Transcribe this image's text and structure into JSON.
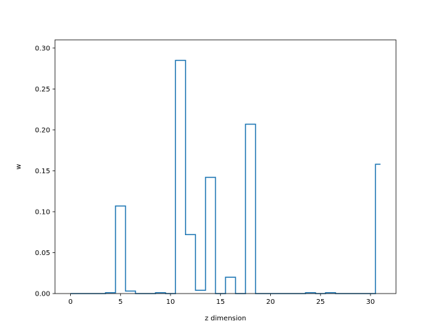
{
  "chart_data": {
    "type": "line",
    "drawstyle": "steps-mid",
    "xlabel": "z dimension",
    "ylabel": "w",
    "xlim": [
      -1.55,
      32.55
    ],
    "ylim": [
      0.0,
      0.31
    ],
    "xticks": [
      0,
      5,
      10,
      15,
      20,
      25,
      30
    ],
    "yticks": [
      0.0,
      0.05,
      0.1,
      0.15,
      0.2,
      0.25,
      0.3
    ],
    "ytick_labels": [
      "0.00",
      "0.05",
      "0.10",
      "0.15",
      "0.20",
      "0.25",
      "0.30"
    ],
    "grid": false,
    "series_color": "#1f77b4",
    "x": [
      0,
      1,
      2,
      3,
      4,
      5,
      6,
      7,
      8,
      9,
      10,
      11,
      12,
      13,
      14,
      15,
      16,
      17,
      18,
      19,
      20,
      21,
      22,
      23,
      24,
      25,
      26,
      27,
      28,
      29,
      30,
      31
    ],
    "values": [
      0.0,
      0.0,
      0.0,
      0.0,
      0.001,
      0.107,
      0.003,
      0.0,
      0.0,
      0.001,
      0.0,
      0.285,
      0.072,
      0.004,
      0.142,
      0.0,
      0.02,
      0.0,
      0.207,
      0.0,
      0.0,
      0.0,
      0.0,
      0.0,
      0.001,
      0.0,
      0.001,
      0.0,
      0.0,
      0.0,
      0.0,
      0.158
    ]
  }
}
